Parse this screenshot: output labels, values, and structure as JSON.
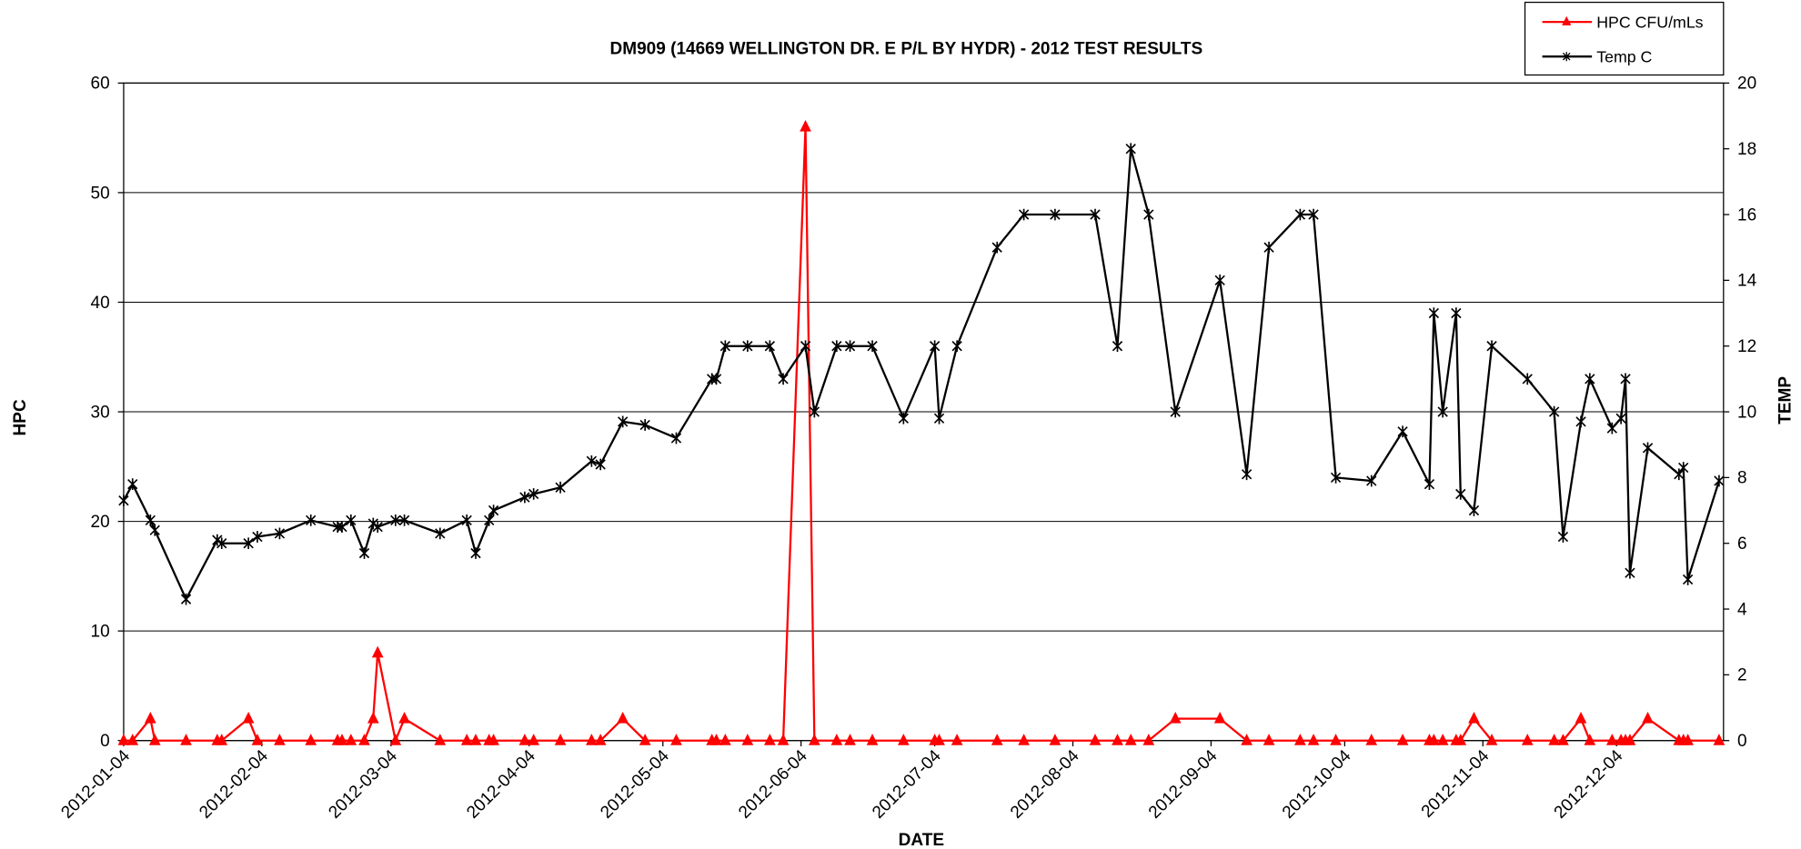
{
  "chart_data": {
    "type": "line",
    "title": "DM909 (14669 WELLINGTON DR. E P/L BY HYDR) - 2012 TEST RESULTS",
    "x_label": "DATE",
    "y_label": "HPC",
    "y2_label": "TEMP",
    "x": [
      "2012-01-04",
      "2012-01-06",
      "2012-01-10",
      "2012-01-11",
      "2012-01-18",
      "2012-01-25",
      "2012-01-26",
      "2012-02-01",
      "2012-02-03",
      "2012-02-08",
      "2012-02-15",
      "2012-02-21",
      "2012-02-22",
      "2012-02-24",
      "2012-02-27",
      "2012-02-29",
      "2012-03-01",
      "2012-03-05",
      "2012-03-07",
      "2012-03-15",
      "2012-03-21",
      "2012-03-23",
      "2012-03-26",
      "2012-03-27",
      "2012-04-03",
      "2012-04-05",
      "2012-04-11",
      "2012-04-18",
      "2012-04-20",
      "2012-04-25",
      "2012-04-30",
      "2012-05-07",
      "2012-05-15",
      "2012-05-16",
      "2012-05-18",
      "2012-05-23",
      "2012-05-28",
      "2012-05-31",
      "2012-06-05",
      "2012-06-07",
      "2012-06-12",
      "2012-06-15",
      "2012-06-20",
      "2012-06-27",
      "2012-07-04",
      "2012-07-05",
      "2012-07-09",
      "2012-07-18",
      "2012-07-24",
      "2012-07-31",
      "2012-08-09",
      "2012-08-14",
      "2012-08-17",
      "2012-08-21",
      "2012-08-27",
      "2012-09-06",
      "2012-09-12",
      "2012-09-17",
      "2012-09-24",
      "2012-09-27",
      "2012-10-02",
      "2012-10-10",
      "2012-10-17",
      "2012-10-23",
      "2012-10-24",
      "2012-10-26",
      "2012-10-29",
      "2012-10-30",
      "2012-11-02",
      "2012-11-06",
      "2012-11-14",
      "2012-11-20",
      "2012-11-22",
      "2012-11-26",
      "2012-11-28",
      "2012-12-03",
      "2012-12-05",
      "2012-12-06",
      "2012-12-07",
      "2012-12-11",
      "2012-12-18",
      "2012-12-19",
      "2012-12-20",
      "2012-12-27"
    ],
    "series": [
      {
        "name": "HPC CFU/mLs",
        "color": "#ff0000",
        "marker": "triangle",
        "axis": "y",
        "values": [
          0,
          0,
          2,
          0,
          0,
          0,
          0,
          2,
          0,
          0,
          0,
          0,
          0,
          0,
          0,
          2,
          8,
          0,
          2,
          0,
          0,
          0,
          0,
          0,
          0,
          0,
          0,
          0,
          0,
          2,
          0,
          0,
          0,
          0,
          0,
          0,
          0,
          0,
          56,
          0,
          0,
          0,
          0,
          0,
          0,
          0,
          0,
          0,
          0,
          0,
          0,
          0,
          0,
          0,
          2,
          2,
          0,
          0,
          0,
          0,
          0,
          0,
          0,
          0,
          0,
          0,
          0,
          0,
          2,
          0,
          0,
          0,
          0,
          2,
          0,
          0,
          0,
          0,
          0,
          2,
          0,
          0,
          0,
          0
        ]
      },
      {
        "name": "Temp C",
        "color": "#000000",
        "marker": "star",
        "axis": "y2",
        "values": [
          7.3,
          7.8,
          6.7,
          6.4,
          4.3,
          6.1,
          6.0,
          6.0,
          6.2,
          6.3,
          6.7,
          6.5,
          6.5,
          6.7,
          5.7,
          6.6,
          6.5,
          6.7,
          6.7,
          6.3,
          6.7,
          5.7,
          6.7,
          7.0,
          7.4,
          7.5,
          7.7,
          8.5,
          8.4,
          9.7,
          9.6,
          9.2,
          11,
          11,
          12,
          12,
          12,
          11,
          12,
          10,
          12,
          12,
          12,
          9.8,
          12,
          9.8,
          12,
          15,
          16,
          16,
          16,
          12,
          18,
          16,
          10,
          14,
          8.1,
          15,
          16,
          16,
          8.0,
          7.9,
          9.4,
          7.8,
          13,
          10,
          13,
          7.5,
          7.0,
          12,
          11,
          10,
          6.2,
          9.7,
          11,
          9.5,
          9.8,
          11,
          5.1,
          8.9,
          8.1,
          8.3,
          4.9,
          7.9
        ]
      }
    ],
    "xlim": [
      "2012-01-04",
      "2012-12-28"
    ],
    "xticks": [
      "2012-01-04",
      "2012-02-04",
      "2012-03-04",
      "2012-04-04",
      "2012-05-04",
      "2012-06-04",
      "2012-07-04",
      "2012-08-04",
      "2012-09-04",
      "2012-10-04",
      "2012-11-04",
      "2012-12-04"
    ],
    "ylim": [
      0,
      60
    ],
    "yticks": [
      0,
      10,
      20,
      30,
      40,
      50,
      60
    ],
    "y2lim": [
      0,
      20
    ],
    "y2ticks": [
      0,
      2,
      4,
      6,
      8,
      10,
      12,
      14,
      16,
      18,
      20
    ],
    "grid": true,
    "legend": "top-right"
  }
}
